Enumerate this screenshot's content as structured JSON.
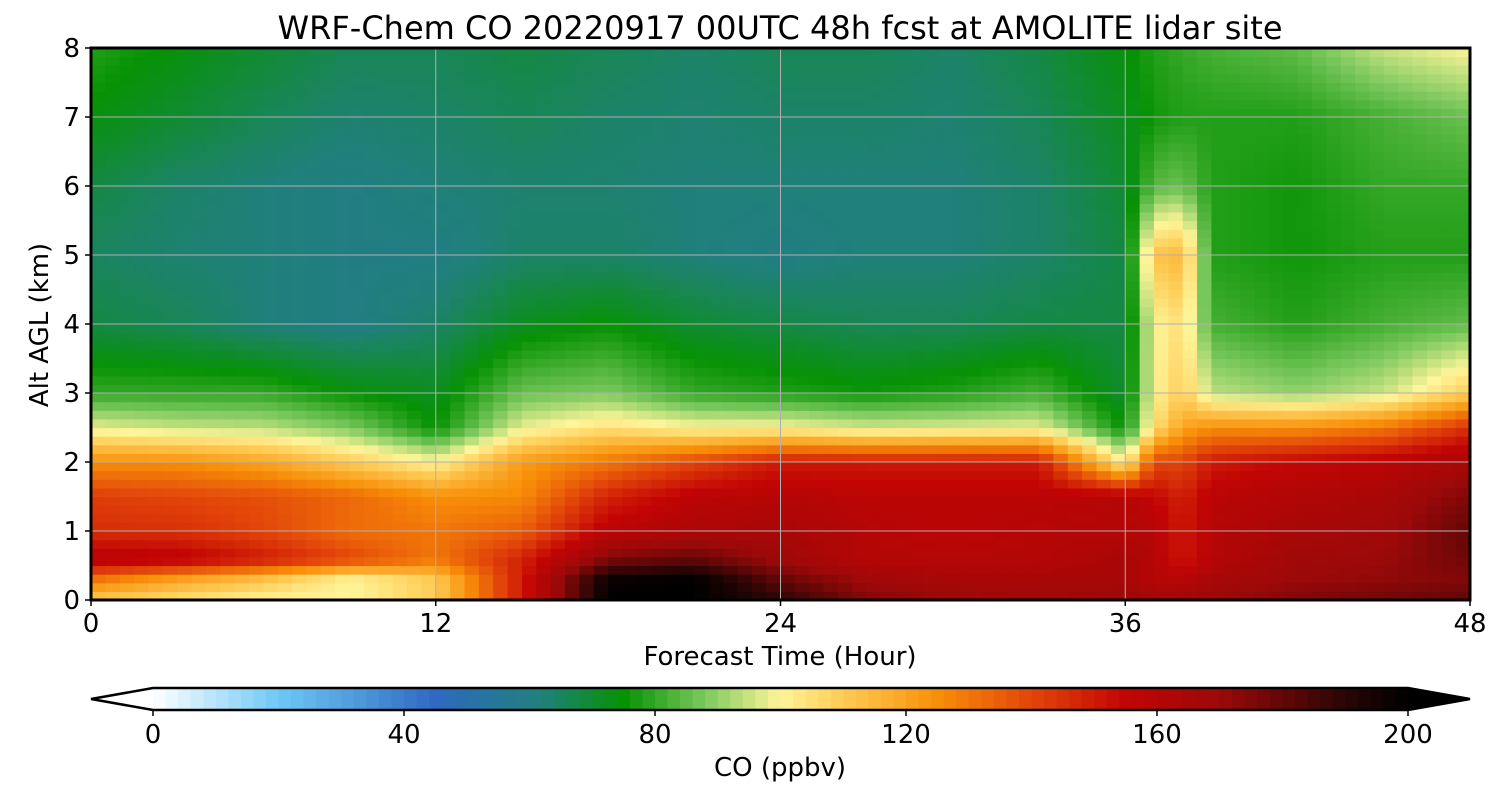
{
  "chart_data": {
    "type": "heatmap",
    "title": "WRF-Chem CO  20220917 00UTC 48h fcst at AMOLITE lidar site",
    "xlabel": "Forecast Time (Hour)",
    "ylabel": "Alt AGL (km)",
    "xlim": [
      0,
      48
    ],
    "ylim": [
      0,
      8
    ],
    "x_ticks": [
      0,
      12,
      24,
      36,
      48
    ],
    "y_ticks": [
      0,
      1,
      2,
      3,
      4,
      5,
      6,
      7,
      8
    ],
    "grid": true,
    "x": [
      0,
      3,
      6,
      9,
      12,
      15,
      18,
      21,
      24,
      27,
      30,
      33,
      36,
      37,
      38,
      39,
      42,
      45,
      48
    ],
    "y": [
      0,
      0.3,
      0.6,
      1,
      1.5,
      2,
      2.5,
      3,
      4,
      5,
      6,
      7,
      8
    ],
    "z": [
      [
        110,
        105,
        100,
        100,
        110,
        150,
        200,
        200,
        190,
        175,
        170,
        168,
        170,
        168,
        168,
        170,
        175,
        178,
        180
      ],
      [
        130,
        120,
        112,
        100,
        110,
        150,
        198,
        200,
        180,
        168,
        165,
        165,
        165,
        160,
        160,
        165,
        170,
        172,
        175
      ],
      [
        160,
        158,
        150,
        140,
        130,
        148,
        175,
        180,
        168,
        160,
        160,
        160,
        165,
        160,
        150,
        160,
        168,
        170,
        178
      ],
      [
        145,
        145,
        140,
        132,
        130,
        135,
        158,
        163,
        165,
        160,
        158,
        160,
        160,
        160,
        150,
        160,
        165,
        168,
        180
      ],
      [
        142,
        140,
        138,
        133,
        125,
        126,
        148,
        158,
        160,
        158,
        158,
        158,
        160,
        155,
        148,
        158,
        162,
        165,
        175
      ],
      [
        125,
        125,
        120,
        110,
        100,
        122,
        130,
        140,
        150,
        150,
        150,
        150,
        100,
        140,
        140,
        150,
        155,
        158,
        165
      ],
      [
        98,
        95,
        94,
        88,
        75,
        98,
        105,
        100,
        100,
        96,
        97,
        98,
        75,
        105,
        120,
        125,
        125,
        130,
        145
      ],
      [
        80,
        80,
        80,
        75,
        72,
        86,
        88,
        80,
        78,
        76,
        78,
        82,
        70,
        100,
        110,
        94,
        90,
        95,
        110
      ],
      [
        68,
        66,
        62,
        60,
        64,
        72,
        75,
        70,
        68,
        66,
        66,
        68,
        68,
        100,
        105,
        82,
        78,
        82,
        85
      ],
      [
        65,
        63,
        62,
        60,
        60,
        64,
        64,
        62,
        60,
        62,
        62,
        64,
        68,
        112,
        115,
        78,
        76,
        78,
        78
      ],
      [
        68,
        64,
        62,
        60,
        62,
        63,
        63,
        62,
        62,
        62,
        62,
        64,
        70,
        84,
        86,
        78,
        76,
        80,
        80
      ],
      [
        74,
        70,
        66,
        63,
        64,
        66,
        64,
        63,
        64,
        64,
        63,
        66,
        72,
        76,
        78,
        78,
        78,
        82,
        86
      ],
      [
        78,
        74,
        70,
        66,
        66,
        68,
        66,
        64,
        66,
        66,
        64,
        68,
        74,
        78,
        80,
        82,
        85,
        95,
        100
      ]
    ],
    "colorbar": {
      "label": "CO  (ppbv)",
      "min": 0,
      "max": 200,
      "ticks": [
        0,
        40,
        80,
        120,
        160,
        200
      ],
      "extend": "both",
      "stops": [
        {
          "v": 0,
          "c": "#ffffff"
        },
        {
          "v": 20,
          "c": "#6ec8f5"
        },
        {
          "v": 45,
          "c": "#2f69c1"
        },
        {
          "v": 62,
          "c": "#20807a"
        },
        {
          "v": 75,
          "c": "#079204"
        },
        {
          "v": 88,
          "c": "#7dc95e"
        },
        {
          "v": 100,
          "c": "#fff59a"
        },
        {
          "v": 110,
          "c": "#ffcb55"
        },
        {
          "v": 125,
          "c": "#f88f08"
        },
        {
          "v": 140,
          "c": "#e2450a"
        },
        {
          "v": 155,
          "c": "#c20404"
        },
        {
          "v": 170,
          "c": "#9b0909"
        },
        {
          "v": 190,
          "c": "#2a0505"
        },
        {
          "v": 200,
          "c": "#000000"
        }
      ]
    }
  }
}
